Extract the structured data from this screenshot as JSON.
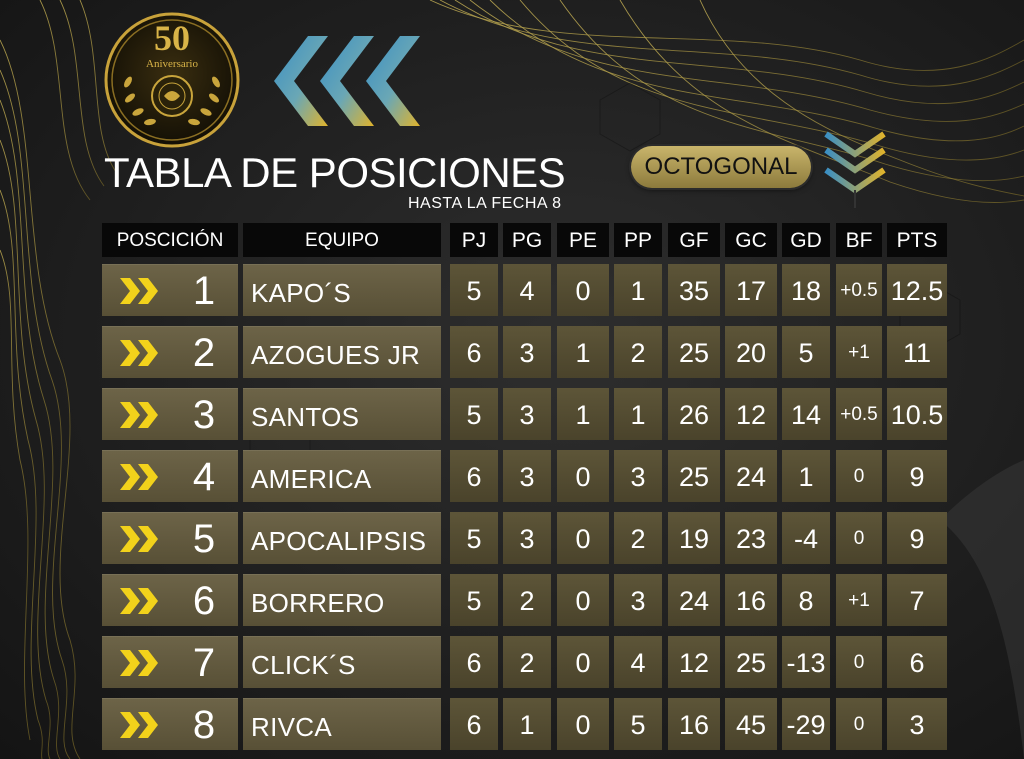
{
  "header": {
    "title": "TABLA DE POSICIONES",
    "subtitle": "HASTA LA FECHA 8",
    "stage_button": "OCTOGONAL"
  },
  "logo": {
    "number": "50",
    "caption": "Aniversario"
  },
  "table": {
    "columns": {
      "position": "POSCICIÓN",
      "team": "EQUIPO",
      "pj": "PJ",
      "pg": "PG",
      "pe": "PE",
      "pp": "PP",
      "gf": "GF",
      "gc": "GC",
      "gd": "GD",
      "bf": "BF",
      "pts": "PTS"
    },
    "rows": [
      {
        "pos": "1",
        "team": "KAPO´S",
        "pj": "5",
        "pg": "4",
        "pe": "0",
        "pp": "1",
        "gf": "35",
        "gc": "17",
        "gd": "18",
        "bf": "+0.5",
        "pts": "12.5"
      },
      {
        "pos": "2",
        "team": "AZOGUES JR",
        "pj": "6",
        "pg": "3",
        "pe": "1",
        "pp": "2",
        "gf": "25",
        "gc": "20",
        "gd": "5",
        "bf": "+1",
        "pts": "11"
      },
      {
        "pos": "3",
        "team": "SANTOS",
        "pj": "5",
        "pg": "3",
        "pe": "1",
        "pp": "1",
        "gf": "26",
        "gc": "12",
        "gd": "14",
        "bf": "+0.5",
        "pts": "10.5"
      },
      {
        "pos": "4",
        "team": "AMERICA",
        "pj": "6",
        "pg": "3",
        "pe": "0",
        "pp": "3",
        "gf": "25",
        "gc": "24",
        "gd": "1",
        "bf": "0",
        "pts": "9"
      },
      {
        "pos": "5",
        "team": "APOCALIPSIS",
        "pj": "5",
        "pg": "3",
        "pe": "0",
        "pp": "2",
        "gf": "19",
        "gc": "23",
        "gd": "-4",
        "bf": "0",
        "pts": "9"
      },
      {
        "pos": "6",
        "team": "BORRERO",
        "pj": "5",
        "pg": "2",
        "pe": "0",
        "pp": "3",
        "gf": "24",
        "gc": "16",
        "gd": "8",
        "bf": "+1",
        "pts": "7"
      },
      {
        "pos": "7",
        "team": "CLICK´S",
        "pj": "6",
        "pg": "2",
        "pe": "0",
        "pp": "4",
        "gf": "12",
        "gc": "25",
        "gd": "-13",
        "bf": "0",
        "pts": "6"
      },
      {
        "pos": "8",
        "team": "RIVCA",
        "pj": "6",
        "pg": "1",
        "pe": "0",
        "pp": "5",
        "gf": "16",
        "gc": "45",
        "gd": "-29",
        "bf": "0",
        "pts": "3"
      }
    ]
  },
  "colors": {
    "gold": "#d8c05a",
    "arrow_yellow": "#f2d21b",
    "cell_olive": "#5d5538",
    "header_black": "#080808",
    "chevron_blue": "#3a8fc4"
  },
  "icons": {
    "row_marker": "double-chevron-right-icon",
    "decor_left": "triple-chevron-left-icon",
    "decor_down": "double-chevron-down-icon"
  }
}
